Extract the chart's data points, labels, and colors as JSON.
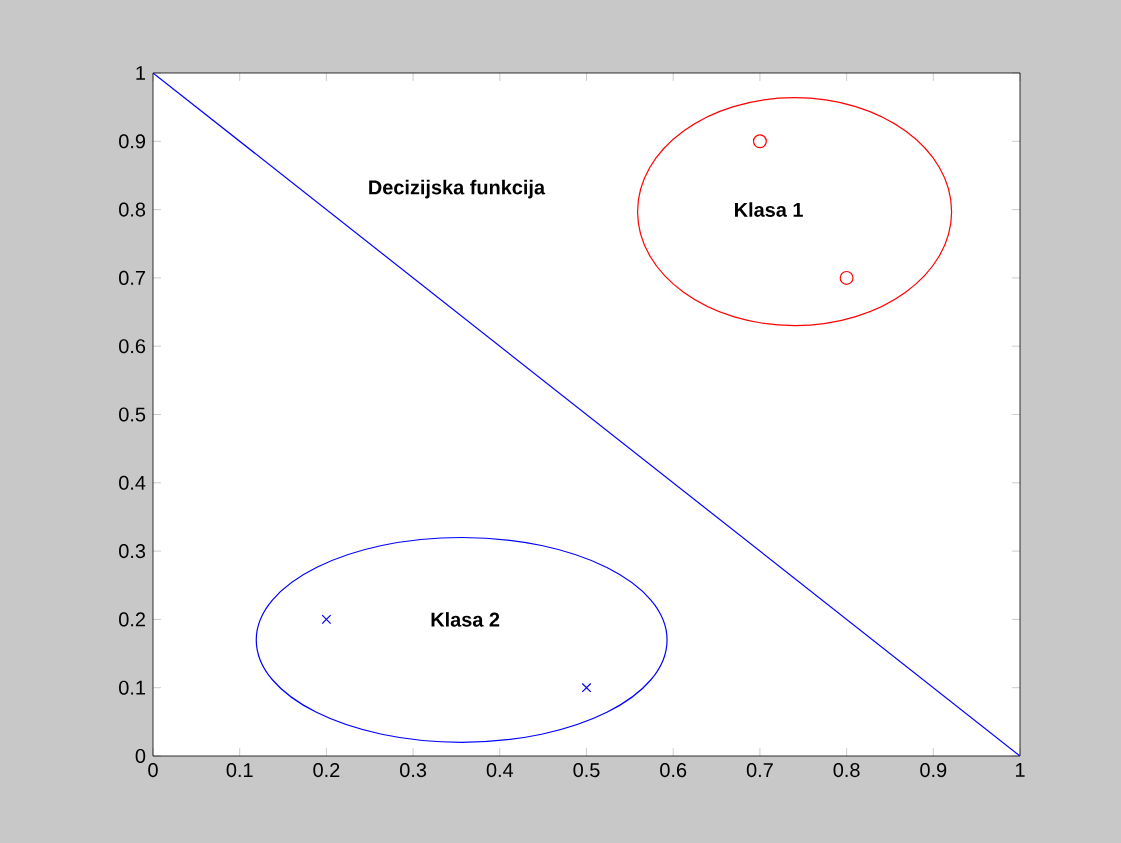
{
  "chart_data": {
    "type": "scatter",
    "xlim": [
      0,
      1
    ],
    "ylim": [
      0,
      1
    ],
    "xticks": [
      0,
      0.1,
      0.2,
      0.3,
      0.4,
      0.5,
      0.6,
      0.7,
      0.8,
      0.9,
      1
    ],
    "yticks": [
      0,
      0.1,
      0.2,
      0.3,
      0.4,
      0.5,
      0.6,
      0.7,
      0.8,
      0.9,
      1
    ],
    "grid": false,
    "series": [
      {
        "type": "line",
        "marker": "none",
        "line_style": "solid",
        "color": "#0000ff",
        "x": [
          0,
          1
        ],
        "values": [
          1,
          0
        ]
      },
      {
        "marker": "circle",
        "color": "#ff0000",
        "x": [
          0.7,
          0.8
        ],
        "values": [
          0.9,
          0.7
        ]
      },
      {
        "marker": "cross",
        "color": "#0000ff",
        "x": [
          0.2,
          0.5
        ],
        "values": [
          0.2,
          0.1
        ]
      }
    ],
    "annotations": [
      "Decizijska funkcija",
      "Klasa 1",
      "Klasa 2"
    ]
  }
}
